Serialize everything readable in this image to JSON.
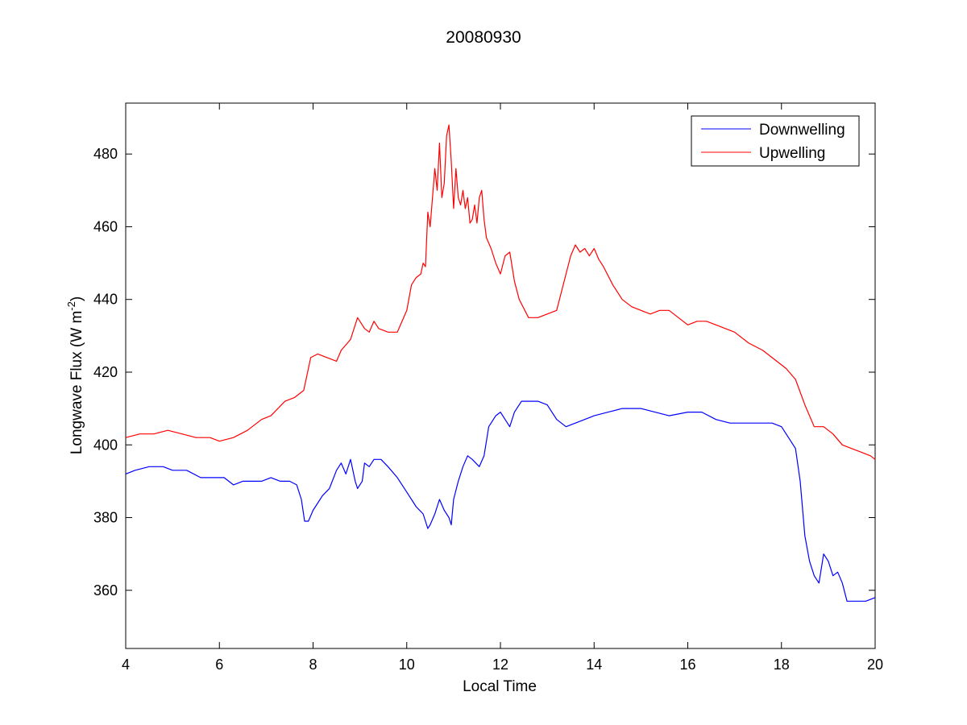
{
  "chart_data": {
    "type": "line",
    "title": "20080930",
    "xlabel": "Local Time",
    "ylabel_main": "Longwave Flux (W m",
    "ylabel_sup": "-2",
    "ylabel_close": ")",
    "xlim": [
      4,
      20
    ],
    "ylim": [
      344,
      494
    ],
    "xticks": [
      4,
      6,
      8,
      10,
      12,
      14,
      16,
      18,
      20
    ],
    "yticks": [
      360,
      380,
      400,
      420,
      440,
      460,
      480
    ],
    "grid": false,
    "legend_position": "top-right",
    "series": [
      {
        "name": "Downwelling",
        "color": "#0000ff",
        "x": [
          4.0,
          4.2,
          4.5,
          4.8,
          5.0,
          5.3,
          5.6,
          5.9,
          6.1,
          6.3,
          6.5,
          6.7,
          6.9,
          7.1,
          7.3,
          7.5,
          7.65,
          7.75,
          7.82,
          7.9,
          8.0,
          8.1,
          8.2,
          8.35,
          8.5,
          8.6,
          8.7,
          8.8,
          8.9,
          8.95,
          9.0,
          9.05,
          9.1,
          9.2,
          9.3,
          9.45,
          9.6,
          9.8,
          10.0,
          10.2,
          10.35,
          10.45,
          10.5,
          10.6,
          10.7,
          10.8,
          10.9,
          10.95,
          11.0,
          11.1,
          11.2,
          11.3,
          11.4,
          11.55,
          11.65,
          11.75,
          11.9,
          12.0,
          12.1,
          12.2,
          12.3,
          12.45,
          12.6,
          12.8,
          13.0,
          13.2,
          13.4,
          13.6,
          13.8,
          14.0,
          14.3,
          14.6,
          15.0,
          15.3,
          15.6,
          16.0,
          16.3,
          16.6,
          16.9,
          17.2,
          17.5,
          17.8,
          18.0,
          18.15,
          18.3,
          18.4,
          18.5,
          18.6,
          18.7,
          18.8,
          18.9,
          19.0,
          19.1,
          19.2,
          19.3,
          19.4,
          19.5,
          19.6,
          19.8,
          20.0
        ],
        "values": [
          392,
          393,
          394,
          394,
          393,
          393,
          391,
          391,
          391,
          389,
          390,
          390,
          390,
          391,
          390,
          390,
          389,
          385,
          379,
          379,
          382,
          384,
          386,
          388,
          393,
          395,
          392,
          396,
          390,
          388,
          389,
          390,
          395,
          394,
          396,
          396,
          394,
          391,
          387,
          383,
          381,
          377,
          378,
          381,
          385,
          382,
          380,
          378,
          385,
          390,
          394,
          397,
          396,
          394,
          397,
          405,
          408,
          409,
          407,
          405,
          409,
          412,
          412,
          412,
          411,
          407,
          405,
          406,
          407,
          408,
          409,
          410,
          410,
          409,
          408,
          409,
          409,
          407,
          406,
          406,
          406,
          406,
          405,
          402,
          399,
          390,
          375,
          368,
          364,
          362,
          370,
          368,
          364,
          365,
          362,
          357,
          357,
          357,
          357,
          358
        ]
      },
      {
        "name": "Upwelling",
        "color": "#ff0000",
        "x": [
          4.0,
          4.3,
          4.6,
          4.9,
          5.2,
          5.5,
          5.8,
          6.0,
          6.3,
          6.6,
          6.9,
          7.1,
          7.4,
          7.6,
          7.8,
          7.95,
          8.1,
          8.3,
          8.5,
          8.6,
          8.8,
          8.95,
          9.0,
          9.1,
          9.2,
          9.3,
          9.4,
          9.6,
          9.8,
          10.0,
          10.1,
          10.2,
          10.3,
          10.35,
          10.4,
          10.45,
          10.5,
          10.55,
          10.6,
          10.65,
          10.7,
          10.75,
          10.8,
          10.85,
          10.9,
          10.95,
          11.0,
          11.05,
          11.1,
          11.15,
          11.2,
          11.25,
          11.3,
          11.35,
          11.4,
          11.45,
          11.5,
          11.55,
          11.6,
          11.65,
          11.7,
          11.8,
          11.9,
          12.0,
          12.1,
          12.2,
          12.3,
          12.4,
          12.6,
          12.8,
          13.0,
          13.2,
          13.4,
          13.5,
          13.6,
          13.7,
          13.8,
          13.9,
          14.0,
          14.1,
          14.2,
          14.4,
          14.6,
          14.8,
          15.0,
          15.2,
          15.4,
          15.6,
          15.8,
          16.0,
          16.2,
          16.4,
          16.6,
          16.8,
          17.0,
          17.3,
          17.6,
          17.9,
          18.1,
          18.3,
          18.5,
          18.7,
          18.9,
          19.1,
          19.3,
          19.5,
          19.7,
          19.9,
          20.0
        ],
        "values": [
          402,
          403,
          403,
          404,
          403,
          402,
          402,
          401,
          402,
          404,
          407,
          408,
          412,
          413,
          415,
          424,
          425,
          424,
          423,
          426,
          429,
          435,
          434,
          432,
          431,
          434,
          432,
          431,
          431,
          437,
          444,
          446,
          447,
          450,
          449,
          464,
          460,
          468,
          476,
          470,
          483,
          468,
          472,
          485,
          488,
          478,
          465,
          476,
          468,
          466,
          470,
          465,
          468,
          461,
          462,
          466,
          461,
          468,
          470,
          462,
          457,
          454,
          450,
          447,
          452,
          453,
          445,
          440,
          435,
          435,
          436,
          437,
          447,
          452,
          455,
          453,
          454,
          452,
          454,
          451,
          449,
          444,
          440,
          438,
          437,
          436,
          437,
          437,
          435,
          433,
          434,
          434,
          433,
          432,
          431,
          428,
          426,
          423,
          421,
          418,
          411,
          405,
          405,
          403,
          400,
          399,
          398,
          397,
          396
        ]
      }
    ]
  }
}
